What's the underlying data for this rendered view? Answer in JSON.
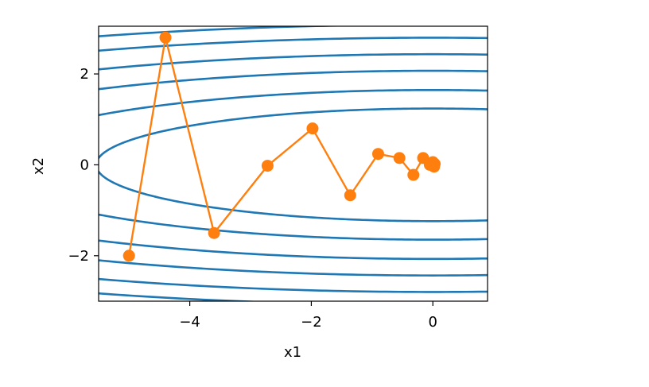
{
  "chart_data": {
    "type": "line",
    "title": "",
    "xlabel": "x1",
    "ylabel": "x2",
    "xlim": [
      -5.5,
      0.9
    ],
    "ylim": [
      -3.0,
      3.05
    ],
    "xticks": [
      {
        "value": -4,
        "label": "−4"
      },
      {
        "value": -2,
        "label": "−2"
      },
      {
        "value": 0,
        "label": "0"
      }
    ],
    "yticks": [
      {
        "value": 2,
        "label": "2"
      },
      {
        "value": 0,
        "label": "0"
      },
      {
        "value": -2,
        "label": "−2"
      }
    ],
    "grid": false,
    "legend": "none",
    "contours": {
      "color": "#1f77b4",
      "function": "x1^2 + 20*x2^2",
      "levels": [
        30.7,
        54.2,
        85.7,
        118.5,
        156.5,
        190.3
      ]
    },
    "trajectory": {
      "color": "#ff7f0e",
      "x": [
        -5.0,
        -4.4,
        -3.6,
        -2.72,
        -1.98,
        -1.36,
        -0.9,
        -0.55,
        -0.32,
        -0.16,
        -0.05,
        0.0,
        0.02,
        0.03
      ],
      "y": [
        -2.0,
        2.8,
        -1.5,
        -0.02,
        0.8,
        -0.67,
        0.24,
        0.15,
        -0.22,
        0.15,
        0.0,
        0.06,
        -0.04,
        0.02
      ]
    }
  }
}
